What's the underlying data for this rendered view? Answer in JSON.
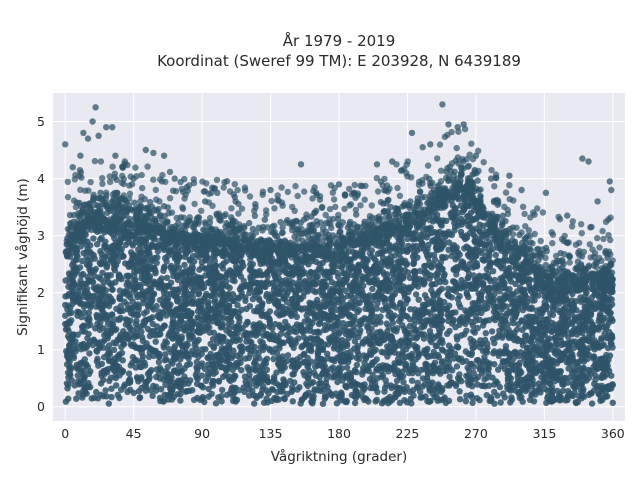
{
  "chart_data": {
    "type": "scatter",
    "title_lines": [
      "År 1979 - 2019",
      "Koordinat (Sweref 99 TM): E 203928, N 6439189"
    ],
    "xlabel": "Vågriktning (grader)",
    "ylabel": "Signifikant våghöjd (m)",
    "xlim": [
      -8,
      368
    ],
    "ylim": [
      -0.25,
      5.5
    ],
    "x_ticks": [
      0,
      45,
      90,
      135,
      180,
      225,
      270,
      315,
      360
    ],
    "y_ticks": [
      0,
      1,
      2,
      3,
      4,
      5
    ],
    "grid": true,
    "marker_color": "#2f5468",
    "plot_background": "#e9e9f1",
    "dense_envelope": {
      "x": [
        0,
        10,
        20,
        30,
        45,
        60,
        75,
        90,
        105,
        120,
        135,
        150,
        165,
        180,
        195,
        210,
        225,
        240,
        255,
        265,
        275,
        285,
        300,
        315,
        330,
        345,
        360
      ],
      "upper": [
        2.8,
        3.1,
        3.3,
        3.2,
        3.2,
        3.1,
        3.0,
        2.9,
        2.9,
        2.8,
        2.8,
        2.8,
        2.8,
        2.8,
        2.9,
        3.1,
        3.2,
        3.5,
        3.8,
        3.8,
        3.4,
        3.0,
        2.6,
        2.3,
        2.2,
        2.2,
        2.3
      ],
      "lower": 0.05
    },
    "outlier_points": [
      {
        "x": 0,
        "y": 4.6
      },
      {
        "x": 5,
        "y": 4.2
      },
      {
        "x": 10,
        "y": 4.4
      },
      {
        "x": 12,
        "y": 4.8
      },
      {
        "x": 15,
        "y": 4.7
      },
      {
        "x": 18,
        "y": 5.0
      },
      {
        "x": 20,
        "y": 5.25
      },
      {
        "x": 22,
        "y": 4.75
      },
      {
        "x": 27,
        "y": 4.9
      },
      {
        "x": 31,
        "y": 4.9
      },
      {
        "x": 33,
        "y": 4.4
      },
      {
        "x": 38,
        "y": 4.2
      },
      {
        "x": 45,
        "y": 4.0
      },
      {
        "x": 53,
        "y": 4.5
      },
      {
        "x": 58,
        "y": 4.45
      },
      {
        "x": 65,
        "y": 4.4
      },
      {
        "x": 72,
        "y": 4.0
      },
      {
        "x": 80,
        "y": 3.85
      },
      {
        "x": 92,
        "y": 3.6
      },
      {
        "x": 100,
        "y": 3.75
      },
      {
        "x": 112,
        "y": 3.6
      },
      {
        "x": 125,
        "y": 3.55
      },
      {
        "x": 135,
        "y": 3.8
      },
      {
        "x": 155,
        "y": 4.25
      },
      {
        "x": 165,
        "y": 3.75
      },
      {
        "x": 180,
        "y": 3.9
      },
      {
        "x": 190,
        "y": 3.75
      },
      {
        "x": 205,
        "y": 4.25
      },
      {
        "x": 215,
        "y": 4.3
      },
      {
        "x": 228,
        "y": 4.8
      },
      {
        "x": 235,
        "y": 4.55
      },
      {
        "x": 240,
        "y": 4.6
      },
      {
        "x": 248,
        "y": 5.3
      },
      {
        "x": 252,
        "y": 4.95
      },
      {
        "x": 258,
        "y": 4.9
      },
      {
        "x": 262,
        "y": 4.95
      },
      {
        "x": 270,
        "y": 4.4
      },
      {
        "x": 280,
        "y": 4.0
      },
      {
        "x": 292,
        "y": 4.05
      },
      {
        "x": 300,
        "y": 3.8
      },
      {
        "x": 316,
        "y": 3.75
      },
      {
        "x": 330,
        "y": 3.35
      },
      {
        "x": 340,
        "y": 4.35
      },
      {
        "x": 344,
        "y": 4.3
      },
      {
        "x": 350,
        "y": 3.6
      },
      {
        "x": 358,
        "y": 3.95
      },
      {
        "x": 359,
        "y": 3.8
      }
    ]
  }
}
